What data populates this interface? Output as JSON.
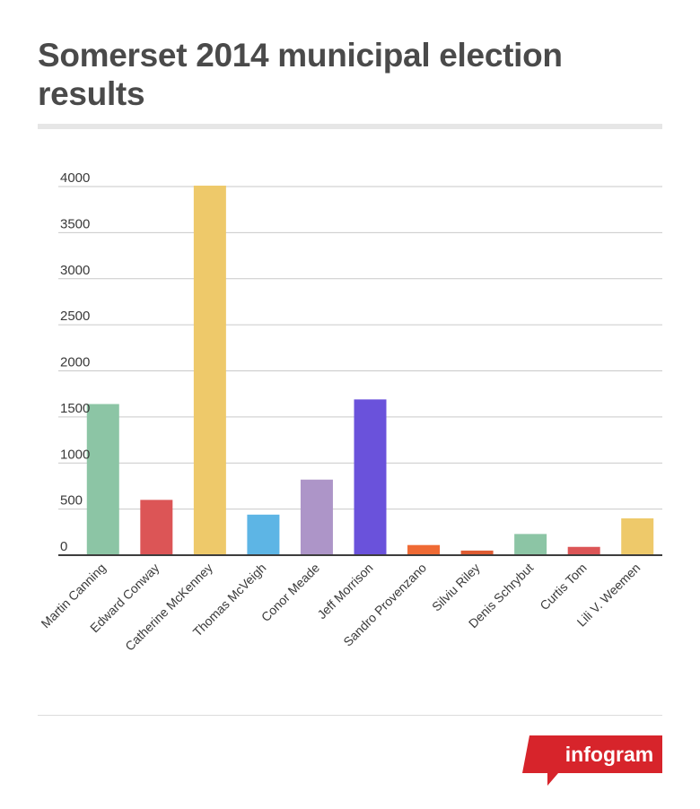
{
  "chart_data": {
    "type": "bar",
    "title": "Somerset 2014 municipal election results",
    "categories": [
      "Martin Canning",
      "Edward Conway",
      "Catherine McKenney",
      "Thomas McVeigh",
      "Conor Meade",
      "Jeff Morrison",
      "Sandro Provenzano",
      "Silviu Riley",
      "Denis Schrybut",
      "Curtis Tom",
      "Lili V. Weemen"
    ],
    "values": [
      1640,
      600,
      4010,
      440,
      820,
      1690,
      110,
      50,
      230,
      90,
      400
    ],
    "colors": [
      "#8cc5a5",
      "#dc5556",
      "#eec96a",
      "#5db5e5",
      "#ad95c8",
      "#6a52db",
      "#ef6a34",
      "#de5b32",
      "#8cc5a5",
      "#dc5556",
      "#eec96a"
    ],
    "ylim": [
      0,
      4000
    ],
    "yticks": [
      "0",
      "500",
      "1000",
      "1500",
      "2000",
      "2500",
      "3000",
      "3500",
      "4000"
    ],
    "grid": true,
    "xlabel": "",
    "ylabel": ""
  },
  "branding": {
    "logo_text": "infogram",
    "logo_color": "#d7242b"
  }
}
